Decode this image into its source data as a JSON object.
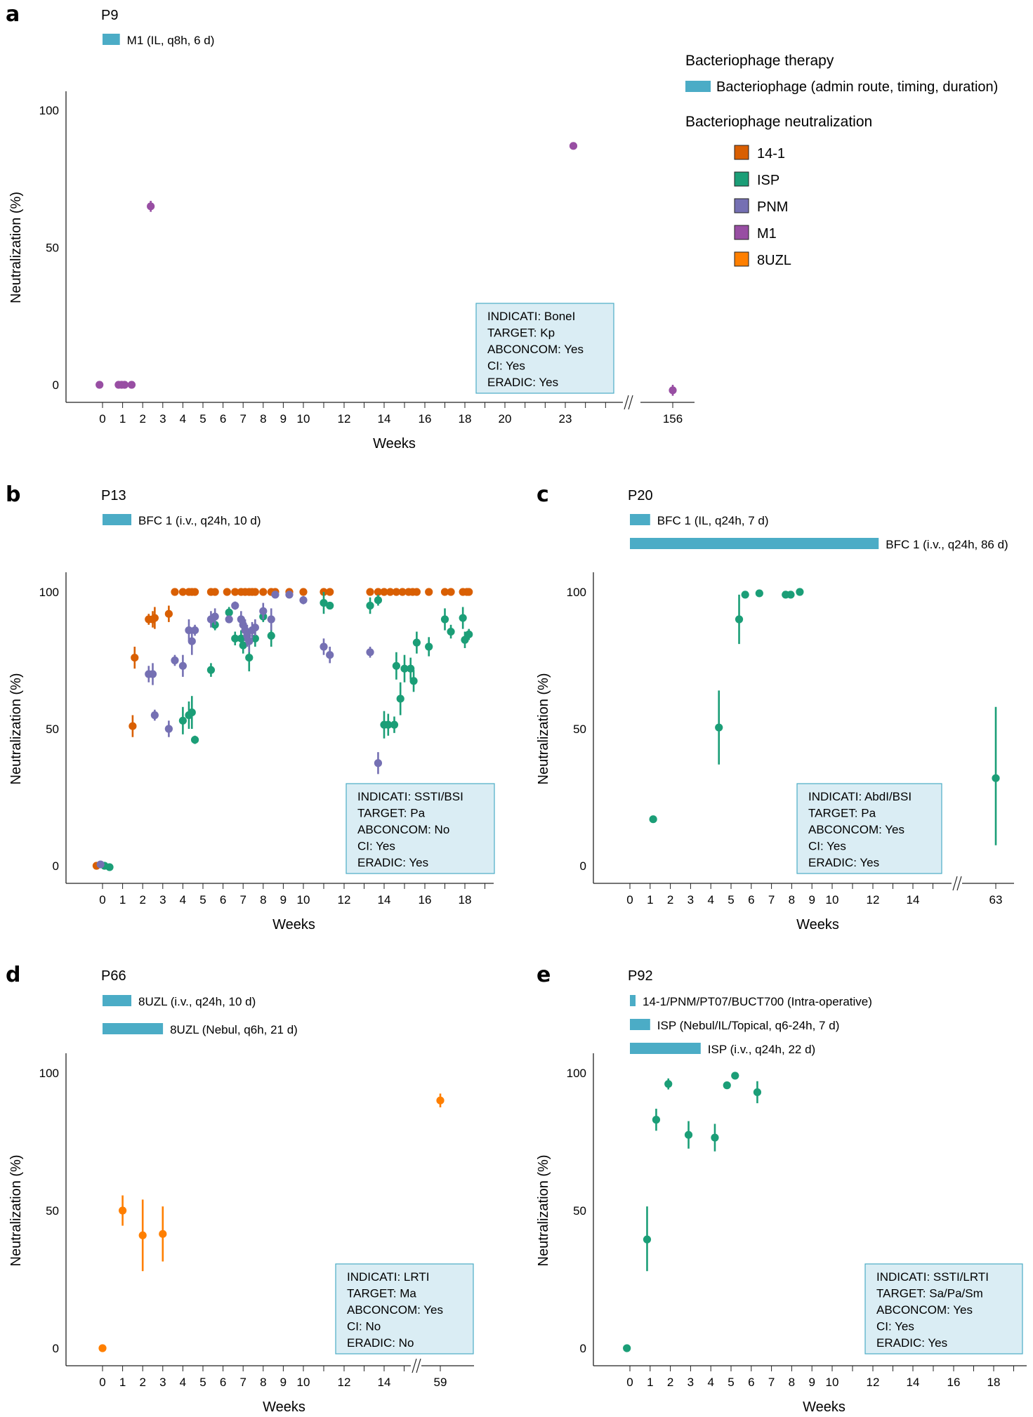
{
  "legend": {
    "therapy_title": "Bacteriophage therapy",
    "therapy_item": "Bacteriophage (admin route, timing, duration)",
    "neutralization_title": "Bacteriophage neutralization",
    "items": [
      {
        "name": "14-1",
        "color": "#d95f02"
      },
      {
        "name": "ISP",
        "color": "#1b9e77"
      },
      {
        "name": "PNM",
        "color": "#7570b3"
      },
      {
        "name": "M1",
        "color": "#984ea3"
      },
      {
        "name": "8UZL",
        "color": "#ff7f00"
      }
    ],
    "therapy_color": "#4bacc6"
  },
  "chart_data": [
    {
      "panel": "a",
      "type": "scatter",
      "title": "P9",
      "therapies": [
        {
          "label": "M1 (IL, q8h, 6 d)",
          "start_week": 0,
          "end_week": 0.86
        }
      ],
      "xlabel": "Weeks",
      "ylabel": "Neutralization (%)",
      "yticks": [
        0,
        50,
        100
      ],
      "xticks": [
        "0",
        "1",
        "2",
        "3",
        "4",
        "5",
        "6",
        "7",
        "8",
        "9",
        "10",
        "12",
        "14",
        "16",
        "18",
        "20",
        "23",
        "156"
      ],
      "axis_break_after": 23,
      "info_box": [
        "INDICATI: BoneI",
        "TARGET: Kp",
        "ABCONCOM: Yes",
        "CI: Yes",
        "ERADIC: Yes"
      ],
      "series": [
        {
          "name": "M1",
          "points": [
            {
              "x": -0.15,
              "y": 0
            },
            {
              "x": 0.8,
              "y": 0
            },
            {
              "x": 0.95,
              "y": 0
            },
            {
              "x": 1.1,
              "y": 0
            },
            {
              "x": 1.45,
              "y": 0
            },
            {
              "x": 2.4,
              "y": 65,
              "err": 2
            },
            {
              "x": 23.4,
              "y": 87,
              "err": 1
            },
            {
              "x": 156,
              "y": -2,
              "err": 2
            }
          ]
        }
      ]
    },
    {
      "panel": "b",
      "type": "scatter",
      "title": "P13",
      "therapies": [
        {
          "label": "BFC 1 (i.v., q24h, 10 d)",
          "start_week": 0,
          "end_week": 1.43
        }
      ],
      "xlabel": "Weeks",
      "ylabel": "Neutralization (%)",
      "yticks": [
        0,
        50,
        100
      ],
      "xticks": [
        "0",
        "1",
        "2",
        "3",
        "4",
        "5",
        "6",
        "7",
        "8",
        "9",
        "10",
        "12",
        "14",
        "16",
        "18"
      ],
      "info_box": [
        "INDICATI: SSTI/BSI",
        "TARGET: Pa",
        "ABCONCOM: No",
        "CI: Yes",
        "ERADIC: Yes"
      ],
      "series": [
        {
          "name": "14-1",
          "points": [
            {
              "x": -0.3,
              "y": 0
            },
            {
              "x": 1.5,
              "y": 51,
              "err": 4
            },
            {
              "x": 1.6,
              "y": 76,
              "err": 4
            },
            {
              "x": 2.3,
              "y": 90,
              "err": 2
            },
            {
              "x": 2.5,
              "y": 90,
              "err": 3
            },
            {
              "x": 2.6,
              "y": 90.5,
              "err": 4
            },
            {
              "x": 3.3,
              "y": 92,
              "err": 3
            },
            {
              "x": 3.6,
              "y": 100
            },
            {
              "x": 4.0,
              "y": 100
            },
            {
              "x": 4.3,
              "y": 100
            },
            {
              "x": 4.45,
              "y": 100
            },
            {
              "x": 4.6,
              "y": 100
            },
            {
              "x": 5.4,
              "y": 100
            },
            {
              "x": 5.6,
              "y": 100
            },
            {
              "x": 6.2,
              "y": 100
            },
            {
              "x": 6.6,
              "y": 100
            },
            {
              "x": 6.9,
              "y": 100
            },
            {
              "x": 7.1,
              "y": 100
            },
            {
              "x": 7.3,
              "y": 100
            },
            {
              "x": 7.45,
              "y": 100
            },
            {
              "x": 7.6,
              "y": 100
            },
            {
              "x": 8.0,
              "y": 100
            },
            {
              "x": 8.4,
              "y": 100
            },
            {
              "x": 8.6,
              "y": 100
            },
            {
              "x": 9.3,
              "y": 100
            },
            {
              "x": 10.0,
              "y": 100
            },
            {
              "x": 11.0,
              "y": 100
            },
            {
              "x": 11.3,
              "y": 100
            },
            {
              "x": 13.3,
              "y": 100
            },
            {
              "x": 13.7,
              "y": 100
            },
            {
              "x": 14.0,
              "y": 100
            },
            {
              "x": 14.3,
              "y": 100
            },
            {
              "x": 14.6,
              "y": 100
            },
            {
              "x": 14.9,
              "y": 100
            },
            {
              "x": 15.2,
              "y": 100
            },
            {
              "x": 15.4,
              "y": 100
            },
            {
              "x": 15.6,
              "y": 100
            },
            {
              "x": 16.2,
              "y": 100
            },
            {
              "x": 17.0,
              "y": 100
            },
            {
              "x": 17.3,
              "y": 100
            },
            {
              "x": 17.9,
              "y": 100
            },
            {
              "x": 18.1,
              "y": 100
            },
            {
              "x": 18.2,
              "y": 100
            }
          ]
        },
        {
          "name": "ISP",
          "points": [
            {
              "x": 0.1,
              "y": 0
            },
            {
              "x": 0.35,
              "y": -0.5
            },
            {
              "x": 4.0,
              "y": 53,
              "err": 5
            },
            {
              "x": 4.3,
              "y": 55,
              "err": 5
            },
            {
              "x": 4.45,
              "y": 56,
              "err": 6
            },
            {
              "x": 4.6,
              "y": 46,
              "err": 1.5
            },
            {
              "x": 5.4,
              "y": 71.5,
              "err": 2.5
            },
            {
              "x": 5.6,
              "y": 88,
              "err": 2
            },
            {
              "x": 6.3,
              "y": 92.5,
              "err": 2
            },
            {
              "x": 6.6,
              "y": 83,
              "err": 2.5
            },
            {
              "x": 6.9,
              "y": 83,
              "err": 3
            },
            {
              "x": 7.0,
              "y": 80.5,
              "err": 3
            },
            {
              "x": 7.3,
              "y": 76,
              "err": 5
            },
            {
              "x": 7.6,
              "y": 83,
              "err": 3
            },
            {
              "x": 8.0,
              "y": 91,
              "err": 2
            },
            {
              "x": 8.4,
              "y": 84,
              "err": 4
            },
            {
              "x": 11.0,
              "y": 96,
              "err": 4
            },
            {
              "x": 11.3,
              "y": 95,
              "err": 1
            },
            {
              "x": 13.3,
              "y": 95,
              "err": 3
            },
            {
              "x": 13.7,
              "y": 97,
              "err": 2
            },
            {
              "x": 14.0,
              "y": 51.5,
              "err": 5
            },
            {
              "x": 14.2,
              "y": 51.5,
              "err": 4
            },
            {
              "x": 14.5,
              "y": 51.5,
              "err": 3
            },
            {
              "x": 14.6,
              "y": 73,
              "err": 5
            },
            {
              "x": 14.8,
              "y": 61,
              "err": 6
            },
            {
              "x": 15.0,
              "y": 72,
              "err": 5
            },
            {
              "x": 15.3,
              "y": 72,
              "err": 4
            },
            {
              "x": 15.45,
              "y": 67.5,
              "err": 4
            },
            {
              "x": 15.6,
              "y": 81.5,
              "err": 4
            },
            {
              "x": 16.2,
              "y": 80,
              "err": 3.5
            },
            {
              "x": 17.0,
              "y": 90,
              "err": 4
            },
            {
              "x": 17.3,
              "y": 85.5,
              "err": 2.5
            },
            {
              "x": 17.9,
              "y": 90.5,
              "err": 4
            },
            {
              "x": 18.0,
              "y": 82.5,
              "err": 3
            },
            {
              "x": 18.2,
              "y": 84.5,
              "err": 2
            }
          ]
        },
        {
          "name": "PNM",
          "points": [
            {
              "x": -0.1,
              "y": 0.5
            },
            {
              "x": 2.3,
              "y": 70,
              "err": 3
            },
            {
              "x": 2.5,
              "y": 70,
              "err": 4
            },
            {
              "x": 2.6,
              "y": 55,
              "err": 2
            },
            {
              "x": 3.3,
              "y": 50,
              "err": 3
            },
            {
              "x": 3.6,
              "y": 75,
              "err": 2
            },
            {
              "x": 4.0,
              "y": 73,
              "err": 4
            },
            {
              "x": 4.3,
              "y": 86,
              "err": 4
            },
            {
              "x": 4.45,
              "y": 82,
              "err": 5
            },
            {
              "x": 4.6,
              "y": 86,
              "err": 2
            },
            {
              "x": 5.4,
              "y": 90,
              "err": 3
            },
            {
              "x": 5.6,
              "y": 91,
              "err": 3
            },
            {
              "x": 6.3,
              "y": 90,
              "err": 1
            },
            {
              "x": 6.6,
              "y": 95,
              "err": 1.5
            },
            {
              "x": 6.9,
              "y": 90,
              "err": 3
            },
            {
              "x": 7.0,
              "y": 88,
              "err": 3
            },
            {
              "x": 7.1,
              "y": 86,
              "err": 4
            },
            {
              "x": 7.2,
              "y": 84,
              "err": 4
            },
            {
              "x": 7.3,
              "y": 82,
              "err": 4
            },
            {
              "x": 7.45,
              "y": 86,
              "err": 3
            },
            {
              "x": 7.6,
              "y": 87,
              "err": 3
            },
            {
              "x": 8.0,
              "y": 93,
              "err": 3
            },
            {
              "x": 8.4,
              "y": 90,
              "err": 4
            },
            {
              "x": 8.6,
              "y": 99,
              "err": 1
            },
            {
              "x": 9.3,
              "y": 99,
              "err": 1
            },
            {
              "x": 10.0,
              "y": 97,
              "err": 1.5
            },
            {
              "x": 11.0,
              "y": 80,
              "err": 3
            },
            {
              "x": 11.3,
              "y": 77,
              "err": 3
            },
            {
              "x": 13.3,
              "y": 78,
              "err": 2
            },
            {
              "x": 13.7,
              "y": 37.5,
              "err": 4
            }
          ]
        }
      ]
    },
    {
      "panel": "c",
      "type": "scatter",
      "title": "P20",
      "therapies": [
        {
          "label": "BFC 1 (IL, q24h, 7 d)",
          "start_week": 0,
          "end_week": 1
        },
        {
          "label": "BFC 1 (i.v., q24h, 86 d)",
          "start_week": 0,
          "end_week": 12.3
        }
      ],
      "xlabel": "Weeks",
      "ylabel": "Neutralization (%)",
      "yticks": [
        0,
        50,
        100
      ],
      "xticks": [
        "0",
        "1",
        "2",
        "3",
        "4",
        "5",
        "6",
        "7",
        "8",
        "9",
        "10",
        "12",
        "14",
        "63"
      ],
      "axis_break_after": 15,
      "info_box": [
        "INDICATI: AbdI/BSI",
        "TARGET: Pa",
        "ABCONCOM: Yes",
        "CI: Yes",
        "ERADIC: Yes"
      ],
      "series": [
        {
          "name": "ISP",
          "points": [
            {
              "x": 1.15,
              "y": 17
            },
            {
              "x": 4.4,
              "y": 50.5,
              "err_low": 37,
              "err_high": 64
            },
            {
              "x": 5.4,
              "y": 90,
              "err_low": 81,
              "err_high": 99
            },
            {
              "x": 5.7,
              "y": 99
            },
            {
              "x": 6.4,
              "y": 99.5
            },
            {
              "x": 7.7,
              "y": 99
            },
            {
              "x": 7.95,
              "y": 99
            },
            {
              "x": 8.4,
              "y": 100
            },
            {
              "x": 63,
              "y": 32,
              "err_low": 7.5,
              "err_high": 58
            }
          ]
        }
      ]
    },
    {
      "panel": "d",
      "type": "scatter",
      "title": "P66",
      "therapies": [
        {
          "label": "8UZL (i.v., q24h, 10 d)",
          "start_week": 0,
          "end_week": 1.43
        },
        {
          "label": "8UZL (Nebul, q6h, 21 d)",
          "start_week": 0,
          "end_week": 3
        }
      ],
      "xlabel": "Weeks",
      "ylabel": "Neutralization (%)",
      "yticks": [
        0,
        50,
        100
      ],
      "xticks": [
        "0",
        "1",
        "2",
        "3",
        "4",
        "5",
        "6",
        "7",
        "8",
        "9",
        "10",
        "12",
        "14",
        "59"
      ],
      "axis_break_after": 15,
      "info_box": [
        "INDICATI: LRTI",
        "TARGET: Ma",
        "ABCONCOM: Yes",
        "CI: No",
        "ERADIC: No"
      ],
      "series": [
        {
          "name": "8UZL",
          "points": [
            {
              "x": 0,
              "y": 0
            },
            {
              "x": 1,
              "y": 50,
              "err": 5.5
            },
            {
              "x": 2,
              "y": 41,
              "err": 13
            },
            {
              "x": 3,
              "y": 41.5,
              "err": 10
            },
            {
              "x": 59,
              "y": 90,
              "err": 2.5
            }
          ]
        }
      ]
    },
    {
      "panel": "e",
      "type": "scatter",
      "title": "P92",
      "therapies": [
        {
          "label": "14-1/PNM/PT07/BUCT700 (Intra-operative)",
          "start_week": 0,
          "end_week": 0.1
        },
        {
          "label": "ISP (Nebul/IL/Topical, q6-24h, 7 d)",
          "start_week": 0,
          "end_week": 1
        },
        {
          "label": "ISP (i.v., q24h, 22 d)",
          "start_week": 0,
          "end_week": 3.5
        }
      ],
      "xlabel": "Weeks",
      "ylabel": "Neutralization (%)",
      "yticks": [
        0,
        50,
        100
      ],
      "xticks": [
        "0",
        "1",
        "2",
        "3",
        "4",
        "5",
        "6",
        "7",
        "8",
        "9",
        "10",
        "12",
        "14",
        "16",
        "18"
      ],
      "info_box": [
        "INDICATI: SSTI/LRTI",
        "TARGET: Sa/Pa/Sm",
        "ABCONCOM: Yes",
        "CI: Yes",
        "ERADIC: Yes"
      ],
      "series": [
        {
          "name": "ISP",
          "points": [
            {
              "x": -0.15,
              "y": 0
            },
            {
              "x": 0.85,
              "y": 39.5,
              "err_low": 28,
              "err_high": 51.5
            },
            {
              "x": 1.3,
              "y": 83,
              "err": 4
            },
            {
              "x": 1.9,
              "y": 96,
              "err": 2
            },
            {
              "x": 2.9,
              "y": 77.5,
              "err": 5
            },
            {
              "x": 4.2,
              "y": 76.5,
              "err": 5
            },
            {
              "x": 4.8,
              "y": 95.5,
              "err": 1
            },
            {
              "x": 5.2,
              "y": 99
            },
            {
              "x": 6.3,
              "y": 93,
              "err": 4
            }
          ]
        }
      ]
    }
  ],
  "panel_letters": [
    "a",
    "b",
    "c",
    "d",
    "e"
  ]
}
